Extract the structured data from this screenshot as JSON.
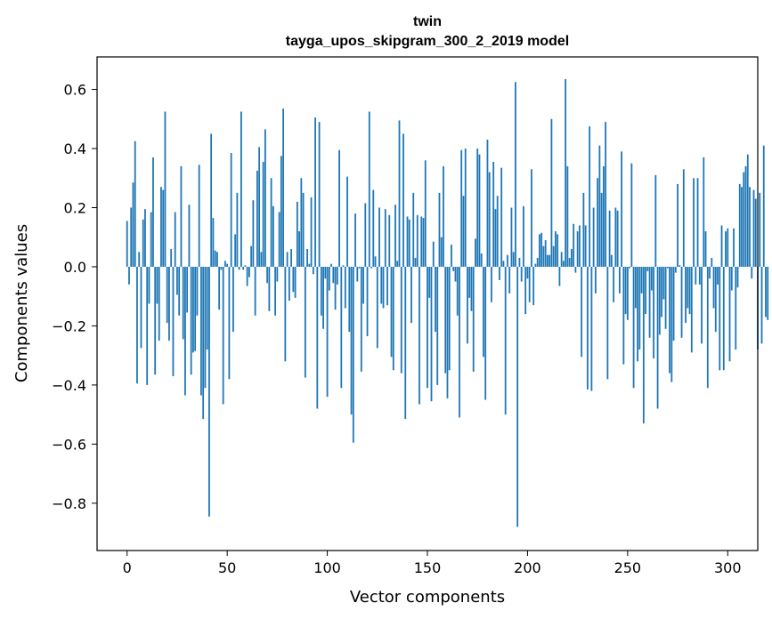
{
  "chart_data": {
    "type": "bar",
    "title": "twin",
    "subtitle": "tayga_upos_skipgram_300_2_2019 model",
    "xlabel": "Vector components",
    "ylabel": "Components values",
    "xlim": [
      -15,
      315
    ],
    "ylim": [
      -0.96,
      0.71
    ],
    "xticks": [
      0,
      50,
      100,
      150,
      200,
      250,
      300
    ],
    "xtick_labels": [
      "0",
      "50",
      "100",
      "150",
      "200",
      "250",
      "300"
    ],
    "yticks": [
      -0.8,
      -0.6,
      -0.4,
      -0.2,
      0.0,
      0.2,
      0.4,
      0.6
    ],
    "ytick_labels": [
      "−0.8",
      "−0.6",
      "−0.4",
      "−0.2",
      "0.0",
      "0.2",
      "0.4",
      "0.6"
    ],
    "grid": false,
    "bar_color": "#1f77b4",
    "values": [
      0.155,
      -0.06,
      0.2,
      0.285,
      0.425,
      -0.395,
      0.05,
      -0.275,
      0.16,
      0.195,
      -0.4,
      -0.125,
      0.185,
      0.37,
      -0.365,
      -0.125,
      -0.25,
      0.27,
      0.26,
      0.525,
      -0.19,
      -0.25,
      0.06,
      -0.37,
      0.185,
      -0.095,
      -0.165,
      0.34,
      -0.245,
      -0.435,
      -0.155,
      0.21,
      -0.365,
      -0.29,
      -0.285,
      -0.165,
      0.345,
      -0.435,
      -0.515,
      -0.41,
      -0.28,
      -0.845,
      0.45,
      0.165,
      0.055,
      0.05,
      -0.145,
      -0.01,
      -0.465,
      0.02,
      0.01,
      -0.38,
      0.385,
      -0.22,
      0.11,
      0.25,
      -0.01,
      0.525,
      -0.01,
      0.005,
      -0.065,
      -0.035,
      0.07,
      0.225,
      -0.165,
      0.325,
      0.405,
      0.05,
      0.355,
      0.465,
      -0.055,
      -0.15,
      0.3,
      0.205,
      -0.165,
      -0.05,
      0.185,
      0.375,
      0.535,
      -0.32,
      0.05,
      -0.115,
      0.06,
      -0.085,
      -0.105,
      0.22,
      0.12,
      0.3,
      0.25,
      -0.375,
      0.06,
      0.01,
      0.235,
      -0.025,
      0.505,
      -0.48,
      0.49,
      -0.165,
      -0.21,
      -0.04,
      -0.44,
      -0.08,
      0.01,
      -0.055,
      -0.145,
      -0.06,
      0.395,
      -0.41,
      0.005,
      -0.14,
      0.305,
      -0.22,
      -0.5,
      -0.595,
      0.18,
      -0.05,
      -0.005,
      -0.355,
      -0.125,
      0.215,
      -0.235,
      0.525,
      -0.005,
      0.26,
      0.035,
      -0.275,
      0.2,
      -0.125,
      -0.14,
      0.195,
      -0.13,
      0.175,
      -0.305,
      -0.35,
      0.21,
      0.02,
      0.495,
      -0.36,
      0.45,
      -0.515,
      0.17,
      0.16,
      -0.19,
      0.25,
      0.03,
      0.175,
      -0.465,
      0.17,
      0.165,
      0.36,
      -0.41,
      -0.105,
      -0.455,
      0.085,
      -0.22,
      -0.4,
      0.25,
      0.1,
      0.34,
      -0.36,
      -0.445,
      -0.35,
      0.075,
      -0.015,
      -0.05,
      -0.165,
      -0.51,
      0.395,
      0.24,
      0.4,
      -0.26,
      -0.105,
      -0.15,
      -0.355,
      0.095,
      0.4,
      0.38,
      0.045,
      -0.305,
      -0.45,
      0.43,
      0.32,
      -0.12,
      0.355,
      0.195,
      0.24,
      -0.045,
      0.335,
      0.02,
      -0.5,
      0.04,
      -0.09,
      0.2,
      0.05,
      0.625,
      -0.88,
      0.03,
      -0.05,
      0.205,
      -0.16,
      -0.04,
      -0.12,
      0.33,
      -0.13,
      0.01,
      0.03,
      0.11,
      0.115,
      0.07,
      0.09,
      0.04,
      0.04,
      0.5,
      0.07,
      0.12,
      0.11,
      -0.065,
      0.05,
      0.02,
      0.635,
      0.34,
      0.03,
      0.06,
      0.145,
      -0.02,
      0.12,
      0.14,
      -0.305,
      0.25,
      0.14,
      -0.415,
      0.475,
      -0.42,
      0.2,
      -0.09,
      0.3,
      0.41,
      0.25,
      0.34,
      0.49,
      -0.38,
      0.19,
      0.04,
      -0.12,
      0.2,
      0.19,
      -0.09,
      0.39,
      -0.33,
      -0.16,
      -0.18,
      -0.005,
      0.35,
      -0.41,
      -0.14,
      -0.32,
      -0.28,
      -0.09,
      -0.53,
      -0.16,
      -0.015,
      -0.24,
      -0.08,
      -0.31,
      0.31,
      -0.48,
      -0.23,
      -0.17,
      -0.11,
      -0.21,
      -0.005,
      -0.36,
      -0.39,
      -0.25,
      -0.02,
      0.28,
      0.005,
      -0.24,
      0.33,
      -0.19,
      -0.14,
      -0.16,
      -0.29,
      0.3,
      -0.06,
      0.3,
      -0.06,
      -0.26,
      0.37,
      0.12,
      -0.41,
      -0.04,
      0.03,
      -0.14,
      -0.22,
      -0.06,
      -0.35,
      0.14,
      -0.35,
      0.12,
      0.13,
      -0.32,
      -0.08,
      0.13,
      -0.28,
      -0.07,
      0.28,
      0.27,
      0.32,
      0.34,
      0.38,
      0.27,
      -0.04,
      0.26,
      0.23,
      -0.28,
      0.25,
      -0.26,
      0.41,
      -0.17,
      -0.18
    ]
  }
}
